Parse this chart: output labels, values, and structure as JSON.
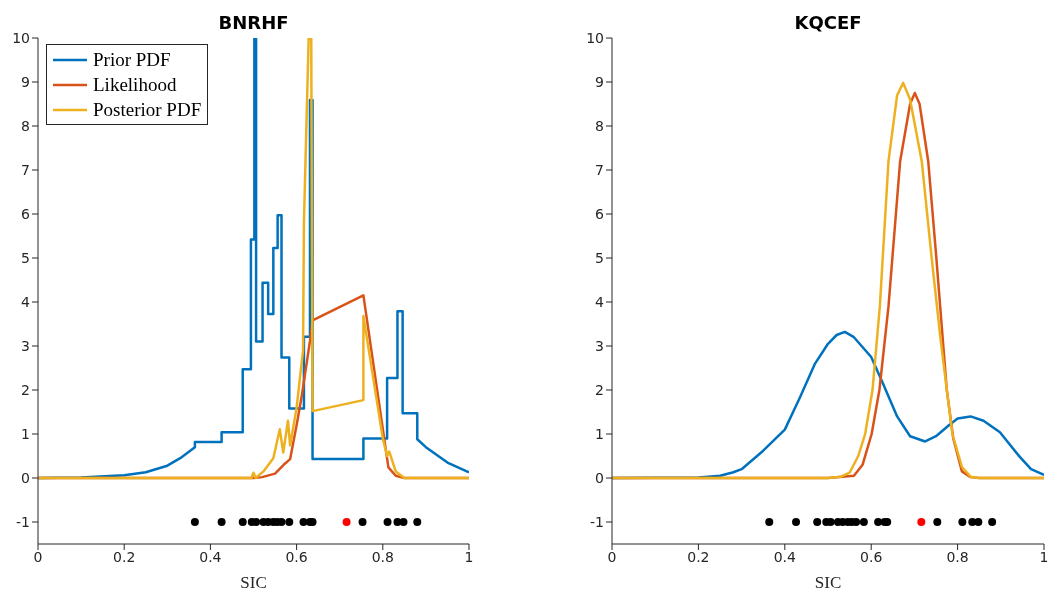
{
  "chart_data": [
    {
      "type": "line",
      "title": "BNRHF",
      "xlabel": "SIC",
      "xlim": [
        0,
        1
      ],
      "xticks": [
        0,
        0.2,
        0.4,
        0.6,
        0.8,
        1
      ],
      "ylim": [
        -1.5,
        10
      ],
      "yticks": [
        -1,
        0,
        1,
        2,
        3,
        4,
        5,
        6,
        7,
        8,
        9,
        10
      ],
      "grid": false,
      "legend": "top left",
      "marker": "none",
      "line_style": "solid",
      "series": [
        {
          "name": "Prior PDF",
          "color": "#0072bd",
          "x": [
            0,
            0.1,
            0.2,
            0.25,
            0.3,
            0.33,
            0.364,
            0.364,
            0.426,
            0.426,
            0.475,
            0.475,
            0.494,
            0.494,
            0.502,
            0.502,
            0.506,
            0.506,
            0.521,
            0.521,
            0.534,
            0.534,
            0.546,
            0.546,
            0.556,
            0.556,
            0.565,
            0.565,
            0.583,
            0.583,
            0.617,
            0.617,
            0.631,
            0.631,
            0.637,
            0.637,
            0.755,
            0.755,
            0.81,
            0.81,
            0.834,
            0.834,
            0.846,
            0.846,
            0.88,
            0.88,
            0.9,
            0.95,
            1
          ],
          "values": [
            0,
            0.01,
            0.06,
            0.13,
            0.28,
            0.45,
            0.7,
            0.82,
            0.82,
            1.04,
            1.04,
            2.47,
            2.47,
            5.42,
            5.42,
            10,
            10,
            3.1,
            3.1,
            4.44,
            4.44,
            3.73,
            3.73,
            5.23,
            5.23,
            5.97,
            5.97,
            2.74,
            2.74,
            1.58,
            1.58,
            3.21,
            3.21,
            8.59,
            8.59,
            0.43,
            0.43,
            0.9,
            0.9,
            2.27,
            2.27,
            3.79,
            3.79,
            1.47,
            1.47,
            0.88,
            0.7,
            0.35,
            0.13
          ]
        },
        {
          "name": "Likelihood",
          "color": "#d95319",
          "x": [
            0,
            0.5,
            0.52,
            0.55,
            0.57,
            0.585,
            0.6,
            0.612,
            0.631,
            0.637,
            0.755,
            0.813,
            0.83,
            0.85,
            1
          ],
          "values": [
            0,
            0,
            0.02,
            0.1,
            0.3,
            0.43,
            1.2,
            1.87,
            3.11,
            3.58,
            4.15,
            0.24,
            0.05,
            0,
            0
          ]
        },
        {
          "name": "Posterior PDF",
          "color": "#edb120",
          "x": [
            0,
            0.495,
            0.5,
            0.505,
            0.523,
            0.546,
            0.561,
            0.569,
            0.58,
            0.585,
            0.6,
            0.615,
            0.617,
            0.628,
            0.634,
            0.637,
            0.755,
            0.755,
            0.8,
            0.81,
            0.815,
            0.83,
            0.85,
            1
          ],
          "values": [
            0,
            0,
            0.12,
            0,
            0.15,
            0.45,
            1.11,
            0.58,
            1.3,
            0.74,
            1.6,
            2.9,
            5.8,
            10,
            10,
            1.52,
            1.77,
            3.68,
            0.9,
            0.5,
            0.6,
            0.15,
            0,
            0
          ]
        },
        {
          "type": "scatter",
          "color": "#000000",
          "marker": "circle",
          "x": [
            0.364,
            0.426,
            0.475,
            0.496,
            0.506,
            0.523,
            0.534,
            0.546,
            0.555,
            0.565,
            0.583,
            0.616,
            0.631,
            0.637,
            0.753,
            0.811,
            0.834,
            0.848,
            0.88
          ],
          "values": [
            -1,
            -1,
            -1,
            -1,
            -1,
            -1,
            -1,
            -1,
            -1,
            -1,
            -1,
            -1,
            -1,
            -1,
            -1,
            -1,
            -1,
            -1,
            -1
          ]
        },
        {
          "type": "scatter",
          "color": "#ff0000",
          "marker": "circle",
          "x": [
            0.716
          ],
          "values": [
            -1
          ]
        }
      ]
    },
    {
      "type": "line",
      "title": "KQCEF",
      "xlabel": "SIC",
      "xlim": [
        0,
        1
      ],
      "xticks": [
        0,
        0.2,
        0.4,
        0.6,
        0.8,
        1
      ],
      "ylim": [
        -1.5,
        10
      ],
      "yticks": [
        -1,
        0,
        1,
        2,
        3,
        4,
        5,
        6,
        7,
        8,
        9,
        10
      ],
      "grid": false,
      "marker": "none",
      "line_style": "solid",
      "series": [
        {
          "color": "#0072bd",
          "x": [
            0,
            0.2,
            0.25,
            0.281,
            0.3,
            0.35,
            0.4,
            0.435,
            0.47,
            0.5,
            0.52,
            0.539,
            0.56,
            0.6,
            0.628,
            0.66,
            0.69,
            0.725,
            0.75,
            0.78,
            0.8,
            0.83,
            0.86,
            0.898,
            0.944,
            0.97,
            1
          ],
          "values": [
            0,
            0.01,
            0.05,
            0.13,
            0.2,
            0.62,
            1.1,
            1.83,
            2.6,
            3.05,
            3.25,
            3.32,
            3.2,
            2.75,
            2.13,
            1.4,
            0.95,
            0.83,
            0.95,
            1.2,
            1.35,
            1.4,
            1.3,
            1.04,
            0.48,
            0.2,
            0.07
          ]
        },
        {
          "color": "#d95319",
          "x": [
            0,
            0.5,
            0.56,
            0.58,
            0.601,
            0.619,
            0.64,
            0.667,
            0.69,
            0.701,
            0.712,
            0.732,
            0.75,
            0.775,
            0.79,
            0.81,
            0.83,
            0.85,
            1
          ],
          "values": [
            0,
            0,
            0.05,
            0.3,
            1,
            2,
            3.9,
            7.2,
            8.5,
            8.75,
            8.5,
            7.2,
            5.1,
            2,
            0.9,
            0.15,
            0.02,
            0,
            0
          ]
        },
        {
          "color": "#edb120",
          "x": [
            0,
            0.5,
            0.53,
            0.55,
            0.57,
            0.586,
            0.603,
            0.62,
            0.64,
            0.66,
            0.674,
            0.69,
            0.717,
            0.74,
            0.76,
            0.775,
            0.788,
            0.81,
            0.83,
            0.85,
            1
          ],
          "values": [
            0,
            0,
            0.03,
            0.12,
            0.5,
            1,
            2,
            3.9,
            7.2,
            8.7,
            8.98,
            8.6,
            7.2,
            5,
            3.2,
            2,
            1,
            0.25,
            0.03,
            0,
            0
          ]
        },
        {
          "type": "scatter",
          "color": "#000000",
          "marker": "circle",
          "x": [
            0.364,
            0.426,
            0.475,
            0.496,
            0.506,
            0.523,
            0.534,
            0.546,
            0.555,
            0.565,
            0.583,
            0.616,
            0.631,
            0.637,
            0.753,
            0.811,
            0.834,
            0.848,
            0.88
          ],
          "values": [
            -1,
            -1,
            -1,
            -1,
            -1,
            -1,
            -1,
            -1,
            -1,
            -1,
            -1,
            -1,
            -1,
            -1,
            -1,
            -1,
            -1,
            -1,
            -1
          ]
        },
        {
          "type": "scatter",
          "color": "#ff0000",
          "marker": "circle",
          "x": [
            0.716
          ],
          "values": [
            -1
          ]
        }
      ]
    }
  ]
}
